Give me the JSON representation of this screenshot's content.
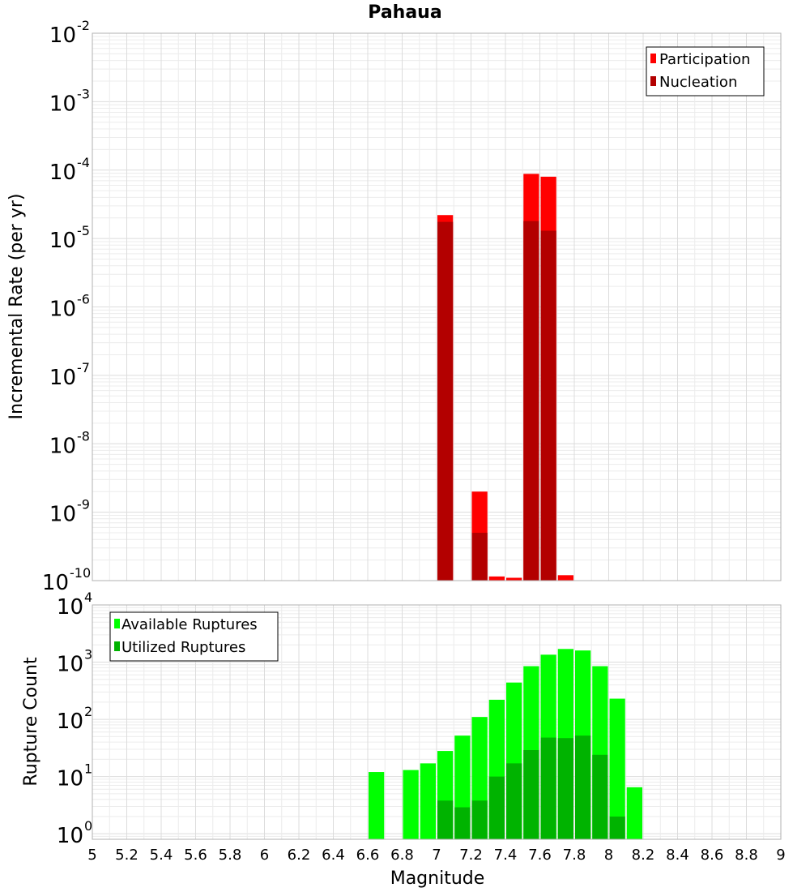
{
  "title": "Pahaua",
  "xlabel": "Magnitude",
  "chart_data": [
    {
      "type": "bar",
      "title": "Pahaua",
      "ylabel": "Incremental Rate (per yr)",
      "yscale": "log",
      "ylim": [
        1e-10,
        0.01
      ],
      "xlim": [
        5,
        9
      ],
      "grid": true,
      "legend_position": "top-right",
      "bar_width": 0.1,
      "y_ticks": [
        {
          "base": "10",
          "exp": "-10",
          "value": 1e-10
        },
        {
          "base": "10",
          "exp": "-9",
          "value": 1e-09
        },
        {
          "base": "10",
          "exp": "-8",
          "value": 1e-08
        },
        {
          "base": "10",
          "exp": "-7",
          "value": 1e-07
        },
        {
          "base": "10",
          "exp": "-6",
          "value": 1e-06
        },
        {
          "base": "10",
          "exp": "-5",
          "value": 1e-05
        },
        {
          "base": "10",
          "exp": "-4",
          "value": 0.0001
        },
        {
          "base": "10",
          "exp": "-3",
          "value": 0.001
        },
        {
          "base": "10",
          "exp": "-2",
          "value": 0.01
        }
      ],
      "series": [
        {
          "name": "Participation",
          "color": "#ff0000",
          "points": [
            {
              "x": 7.05,
              "y": 2.2e-05
            },
            {
              "x": 7.25,
              "y": 2e-09
            },
            {
              "x": 7.35,
              "y": 1.15e-10
            },
            {
              "x": 7.45,
              "y": 1.1e-10
            },
            {
              "x": 7.55,
              "y": 8.8e-05
            },
            {
              "x": 7.65,
              "y": 8e-05
            },
            {
              "x": 7.75,
              "y": 1.2e-10
            }
          ]
        },
        {
          "name": "Nucleation",
          "color": "#b30000",
          "points": [
            {
              "x": 7.05,
              "y": 1.75e-05
            },
            {
              "x": 7.25,
              "y": 5e-10
            },
            {
              "x": 7.55,
              "y": 1.8e-05
            },
            {
              "x": 7.65,
              "y": 1.3e-05
            }
          ]
        }
      ]
    },
    {
      "type": "bar",
      "ylabel": "Rupture Count",
      "xlabel": "Magnitude",
      "yscale": "log",
      "ylim": [
        0.8,
        10000
      ],
      "xlim": [
        5,
        9
      ],
      "grid": true,
      "legend_position": "top-left",
      "bar_width": 0.1,
      "y_ticks": [
        {
          "base": "10",
          "exp": "0",
          "value": 1
        },
        {
          "base": "10",
          "exp": "1",
          "value": 10
        },
        {
          "base": "10",
          "exp": "2",
          "value": 100
        },
        {
          "base": "10",
          "exp": "3",
          "value": 1000
        },
        {
          "base": "10",
          "exp": "4",
          "value": 10000
        }
      ],
      "x_ticks": [
        "5",
        "5.2",
        "5.4",
        "5.6",
        "5.8",
        "6",
        "6.2",
        "6.4",
        "6.6",
        "6.8",
        "7",
        "7.2",
        "7.4",
        "7.6",
        "7.8",
        "8",
        "8.2",
        "8.4",
        "8.6",
        "8.8",
        "9"
      ],
      "series": [
        {
          "name": "Available Ruptures",
          "color": "#00ff00",
          "points": [
            {
              "x": 6.65,
              "y": 12
            },
            {
              "x": 6.85,
              "y": 13
            },
            {
              "x": 6.95,
              "y": 17
            },
            {
              "x": 7.05,
              "y": 28
            },
            {
              "x": 7.15,
              "y": 52
            },
            {
              "x": 7.25,
              "y": 110
            },
            {
              "x": 7.35,
              "y": 220
            },
            {
              "x": 7.45,
              "y": 440
            },
            {
              "x": 7.55,
              "y": 850
            },
            {
              "x": 7.65,
              "y": 1350
            },
            {
              "x": 7.75,
              "y": 1700
            },
            {
              "x": 7.85,
              "y": 1600
            },
            {
              "x": 7.95,
              "y": 850
            },
            {
              "x": 8.05,
              "y": 230
            },
            {
              "x": 8.15,
              "y": 6.5
            }
          ]
        },
        {
          "name": "Utilized Ruptures",
          "color": "#00b300",
          "points": [
            {
              "x": 7.05,
              "y": 3.8
            },
            {
              "x": 7.15,
              "y": 2.9
            },
            {
              "x": 7.25,
              "y": 3.8
            },
            {
              "x": 7.35,
              "y": 10
            },
            {
              "x": 7.45,
              "y": 17
            },
            {
              "x": 7.55,
              "y": 29
            },
            {
              "x": 7.65,
              "y": 48
            },
            {
              "x": 7.75,
              "y": 47
            },
            {
              "x": 7.85,
              "y": 52
            },
            {
              "x": 7.95,
              "y": 24
            },
            {
              "x": 8.05,
              "y": 2.0
            }
          ]
        }
      ]
    }
  ]
}
